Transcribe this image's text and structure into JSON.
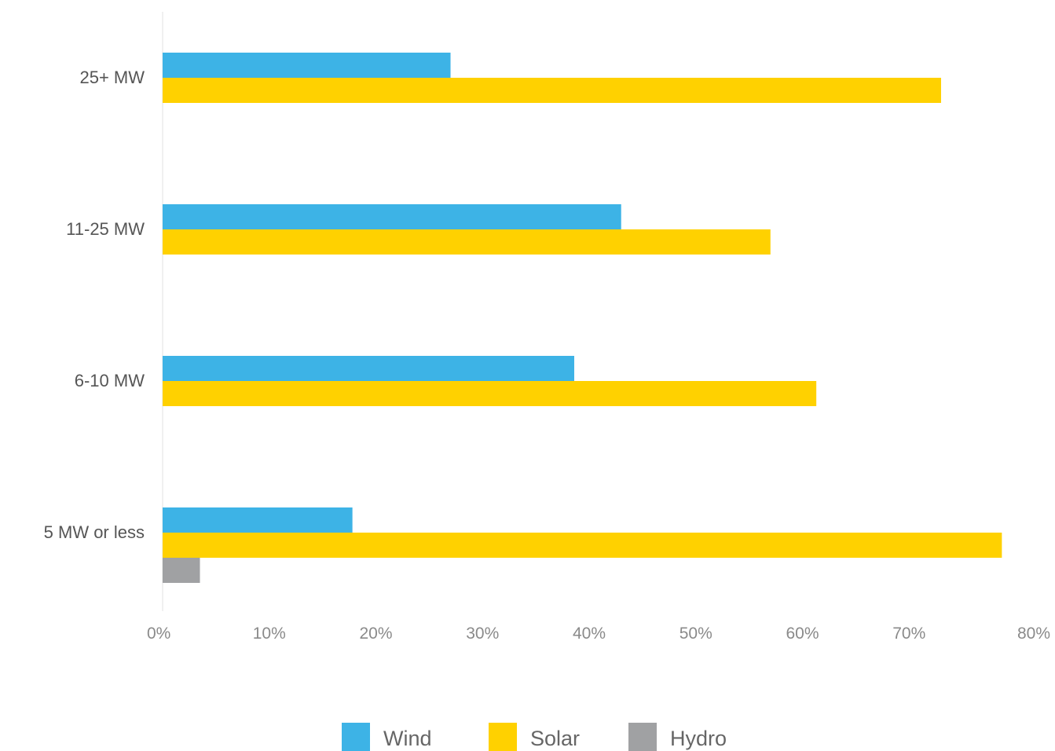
{
  "chart_data": {
    "type": "bar",
    "orientation": "horizontal",
    "categories": [
      "25+ MW",
      "11-25 MW",
      "6-10 MW",
      "5 MW or less"
    ],
    "series": [
      {
        "name": "Wind",
        "color": "#3db3e6",
        "values": [
          27,
          43,
          38.6,
          17.8
        ]
      },
      {
        "name": "Solar",
        "color": "#ffd100",
        "values": [
          73,
          57,
          61.3,
          78.7
        ]
      },
      {
        "name": "Hydro",
        "color": "#a0a1a3",
        "values": [
          0,
          0,
          0,
          3.5
        ]
      }
    ],
    "xlim": [
      0,
      80
    ],
    "xticks": [
      "0%",
      "10%",
      "20%",
      "30%",
      "40%",
      "50%",
      "60%",
      "70%",
      "80%"
    ],
    "title": "",
    "xlabel": "",
    "ylabel": "",
    "legend_position": "bottom-center",
    "grid": false
  }
}
